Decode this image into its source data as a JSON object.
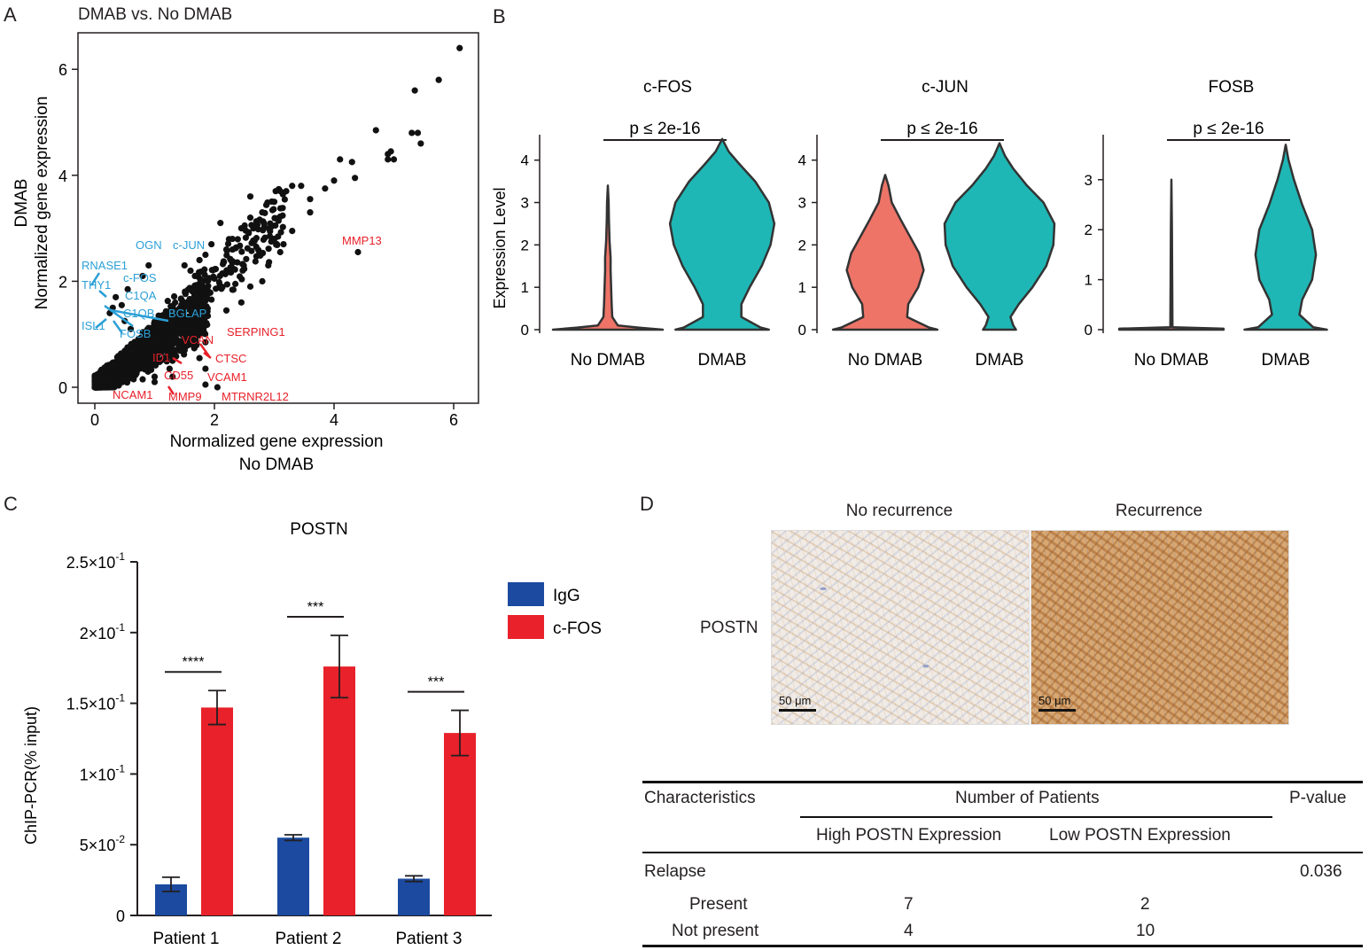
{
  "panel_letters": {
    "a": "A",
    "b": "B",
    "c": "C",
    "d": "D"
  },
  "colors": {
    "no_dmab": "#ee7468",
    "dmab": "#1fb7b5",
    "igg": "#1b4aa0",
    "cfos": "#e8212a",
    "up_label": "#2a9fd6",
    "down_label": "#e8212a",
    "black": "#111111"
  },
  "chart_data": [
    {
      "type": "scatter",
      "title": "DMAB vs. No DMAB",
      "xlabel_line1": "Normalized gene expression",
      "xlabel_line2": "No DMAB",
      "ylabel_line1": "DMAB",
      "ylabel_line2": "Normalized gene expression",
      "xlim": [
        -0.3,
        6.6
      ],
      "ylim": [
        -0.3,
        6.7
      ],
      "xticks": [
        "0",
        "2",
        "4",
        "6"
      ],
      "yticks": [
        "0",
        "2",
        "4",
        "6"
      ],
      "points": [
        [
          6.1,
          6.4
        ],
        [
          5.75,
          5.8
        ],
        [
          5.35,
          5.6
        ],
        [
          5.3,
          4.8
        ],
        [
          5.4,
          4.8
        ],
        [
          5.45,
          4.6
        ],
        [
          4.7,
          4.85
        ],
        [
          4.9,
          4.4
        ],
        [
          4.95,
          4.45
        ],
        [
          5.0,
          4.3
        ],
        [
          4.9,
          4.3
        ],
        [
          4.1,
          4.3
        ],
        [
          4.3,
          4.25
        ],
        [
          4.35,
          3.95
        ],
        [
          4.0,
          3.9
        ],
        [
          3.85,
          3.75
        ],
        [
          3.6,
          3.55
        ],
        [
          3.45,
          3.8
        ],
        [
          3.3,
          3.8
        ],
        [
          3.2,
          3.7
        ],
        [
          3.0,
          3.5
        ],
        [
          2.8,
          3.3
        ],
        [
          2.6,
          3.6
        ],
        [
          2.6,
          3.2
        ],
        [
          2.45,
          3.0
        ],
        [
          2.3,
          2.8
        ],
        [
          2.1,
          3.1
        ],
        [
          2.2,
          2.6
        ],
        [
          1.95,
          2.7
        ],
        [
          1.85,
          2.5
        ],
        [
          1.75,
          2.4
        ],
        [
          1.6,
          2.2
        ],
        [
          1.5,
          2.3
        ],
        [
          3.6,
          3.3
        ],
        [
          4.4,
          2.55
        ],
        [
          2.3,
          2.35
        ],
        [
          2.0,
          2.05
        ],
        [
          1.8,
          1.55
        ],
        [
          1.45,
          1.1
        ],
        [
          1.85,
          0.85
        ],
        [
          1.55,
          0.8
        ],
        [
          1.25,
          0.95
        ],
        [
          1.35,
          0.6
        ],
        [
          1.1,
          0.5
        ],
        [
          1.3,
          0.5
        ],
        [
          1.75,
          0.55
        ],
        [
          1.85,
          0.35
        ],
        [
          1.25,
          0.35
        ],
        [
          1.0,
          0.2
        ],
        [
          1.3,
          0.2
        ],
        [
          0.8,
          0.15
        ],
        [
          1.0,
          0.1
        ],
        [
          1.85,
          0.05
        ],
        [
          2.05,
          0.0
        ],
        [
          0.9,
          2.3
        ],
        [
          0.8,
          2.1
        ],
        [
          0.55,
          1.85
        ],
        [
          0.35,
          1.7
        ],
        [
          0.45,
          1.55
        ],
        [
          0.3,
          1.5
        ],
        [
          0.25,
          1.4
        ],
        [
          0.5,
          1.25
        ],
        [
          0.6,
          1.1
        ],
        [
          2.6,
          1.9
        ],
        [
          2.8,
          2.0
        ],
        [
          2.45,
          1.6
        ],
        [
          2.2,
          1.45
        ],
        [
          2.35,
          1.95
        ],
        [
          3.1,
          2.55
        ],
        [
          2.9,
          2.3
        ],
        [
          3.3,
          2.95
        ],
        [
          2.7,
          2.65
        ],
        [
          2.95,
          2.75
        ]
      ],
      "up_labels": [
        "OGN",
        "c-JUN",
        "RNASE1",
        "THY1",
        "c-FOS",
        "C1QA",
        "C1QB",
        "BGLAP",
        "ISL1",
        "FOSB"
      ],
      "down_labels": [
        "MMP13",
        "SERPING1",
        "VCAN",
        "ID1",
        "CTSC",
        "CD55",
        "VCAM1",
        "NCAM1",
        "MMP9",
        "MTRNR2L12"
      ]
    },
    {
      "type": "violin",
      "ylabel": "Expression Level",
      "groups": [
        "No DMAB",
        "DMAB"
      ],
      "panels": [
        {
          "title": "c-FOS",
          "pvalue": "p ≤ 2e-16",
          "ymax": 4.6,
          "yticks": [
            "0",
            "1",
            "2",
            "3",
            "4"
          ],
          "no_dmab": {
            "y": [
              0,
              0.05,
              0.1,
              0.3,
              0.6,
              1.0,
              1.4,
              1.7,
              2.1,
              2.6,
              3.0,
              3.4
            ],
            "w": [
              1.0,
              0.55,
              0.18,
              0.08,
              0.07,
              0.06,
              0.05,
              0.05,
              0.03,
              0.02,
              0.015,
              0.0
            ]
          },
          "dmab": {
            "y": [
              0,
              0.05,
              0.3,
              0.6,
              1.0,
              1.5,
              2.0,
              2.5,
              3.0,
              3.5,
              3.9,
              4.2,
              4.5
            ],
            "w": [
              0.85,
              0.7,
              0.35,
              0.35,
              0.5,
              0.72,
              0.88,
              0.95,
              0.85,
              0.6,
              0.32,
              0.12,
              0.0
            ]
          }
        },
        {
          "title": "c-JUN",
          "pvalue": "p ≤ 2e-16",
          "ymax": 4.6,
          "yticks": [
            "0",
            "1",
            "2",
            "3",
            "4"
          ],
          "no_dmab": {
            "y": [
              0,
              0.05,
              0.3,
              0.6,
              1.0,
              1.4,
              1.8,
              2.2,
              2.6,
              3.0,
              3.4,
              3.65
            ],
            "w": [
              0.95,
              0.8,
              0.4,
              0.42,
              0.6,
              0.7,
              0.62,
              0.45,
              0.28,
              0.12,
              0.06,
              0.0
            ]
          },
          "dmab": {
            "y": [
              0,
              0.1,
              0.3,
              0.6,
              1.0,
              1.5,
              2.0,
              2.5,
              3.0,
              3.4,
              3.8,
              4.1,
              4.4
            ],
            "w": [
              0.3,
              0.25,
              0.2,
              0.35,
              0.6,
              0.85,
              0.98,
              1.0,
              0.8,
              0.5,
              0.25,
              0.1,
              0.0
            ]
          }
        },
        {
          "title": "FOSB",
          "pvalue": "p ≤ 2e-16",
          "ymax": 3.9,
          "yticks": [
            "0",
            "1",
            "2",
            "3"
          ],
          "no_dmab": {
            "y": [
              0,
              0.02,
              0.05,
              1.0,
              2.0,
              3.0
            ],
            "w": [
              0.95,
              0.95,
              0.02,
              0.015,
              0.01,
              0.0
            ]
          },
          "dmab": {
            "y": [
              0,
              0.05,
              0.3,
              0.6,
              1.0,
              1.5,
              2.0,
              2.5,
              3.0,
              3.4,
              3.7
            ],
            "w": [
              0.75,
              0.5,
              0.25,
              0.3,
              0.48,
              0.55,
              0.48,
              0.3,
              0.15,
              0.05,
              0.0
            ]
          }
        }
      ]
    },
    {
      "type": "bar",
      "title": "POSTN",
      "ylabel": "ChIP-PCR(% input)",
      "categories": [
        "Patient 1",
        "Patient 2",
        "Patient 3"
      ],
      "ylim": [
        0,
        0.25
      ],
      "yticks": [
        0,
        0.05,
        0.1,
        0.15,
        0.2,
        0.25
      ],
      "ytick_labels": [
        {
          "m": "0",
          "e": ""
        },
        {
          "m": "5×10",
          "e": "-2"
        },
        {
          "m": "1×10",
          "e": "-1"
        },
        {
          "m": "1.5×10",
          "e": "-1"
        },
        {
          "m": "2×10",
          "e": "-1"
        },
        {
          "m": "2.5×10",
          "e": "-1"
        }
      ],
      "series": [
        {
          "name": "IgG",
          "values": [
            0.022,
            0.055,
            0.026
          ],
          "errors": [
            0.005,
            0.002,
            0.002
          ]
        },
        {
          "name": "c-FOS",
          "values": [
            0.147,
            0.176,
            0.129
          ],
          "errors": [
            0.012,
            0.022,
            0.016
          ]
        }
      ],
      "significance": [
        "****",
        "***",
        "***"
      ]
    }
  ],
  "panel_d": {
    "col_titles": [
      "No recurrence",
      "Recurrence"
    ],
    "row_label": "POSTN",
    "scale_bar": "50 μm",
    "table": {
      "h_characteristics": "Characteristics",
      "h_number": "Number of Patients",
      "h_pvalue": "P-value",
      "sub_high": "High POSTN Expression",
      "sub_low": "Low POSTN Expression",
      "relapse": "Relapse",
      "relapse_p": "0.036",
      "rows": [
        {
          "label": "Present",
          "high": "7",
          "low": "2"
        },
        {
          "label": "Not present",
          "high": "4",
          "low": "10"
        }
      ]
    }
  }
}
